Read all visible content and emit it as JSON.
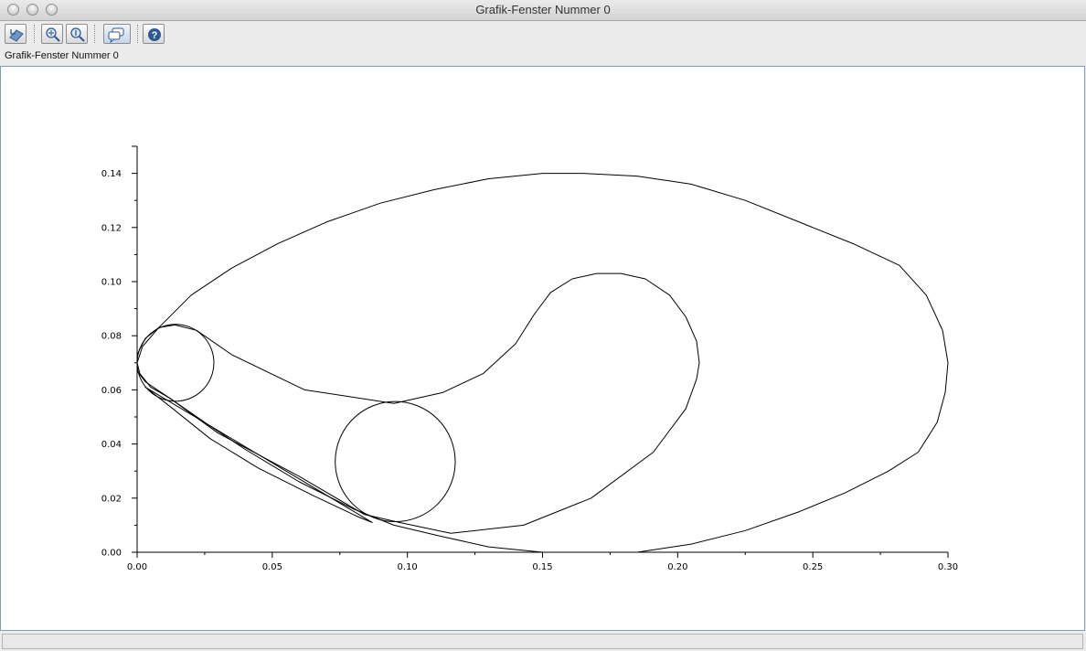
{
  "window": {
    "title": "Grafik-Fenster Nummer 0"
  },
  "figure": {
    "label": "Grafik-Fenster Nummer 0"
  },
  "toolbar": {
    "buttons": [
      {
        "icon": "rotate-icon"
      },
      {
        "icon": "zoom-icon"
      },
      {
        "icon": "zoom-reset-icon"
      },
      {
        "icon": "datatip-icon"
      },
      {
        "icon": "help-icon"
      }
    ]
  },
  "chart_data": {
    "type": "line",
    "title": "",
    "xlabel": "",
    "ylabel": "",
    "xlim": [
      0,
      0.3
    ],
    "ylim": [
      0,
      0.15
    ],
    "xticks": [
      "0.00",
      "0.05",
      "0.10",
      "0.15",
      "0.20",
      "0.25",
      "0.30"
    ],
    "yticks": [
      "0.00",
      "0.02",
      "0.04",
      "0.06",
      "0.08",
      "0.10",
      "0.12",
      "0.14"
    ],
    "grid": false,
    "line_color": "#000000",
    "series": [
      {
        "closed": true,
        "points": [
          [
            0.008,
            0.083
          ],
          [
            0.02,
            0.095
          ],
          [
            0.035,
            0.105
          ],
          [
            0.052,
            0.114
          ],
          [
            0.07,
            0.122
          ],
          [
            0.09,
            0.129
          ],
          [
            0.11,
            0.134
          ],
          [
            0.13,
            0.138
          ],
          [
            0.15,
            0.14
          ],
          [
            0.165,
            0.14
          ],
          [
            0.185,
            0.139
          ],
          [
            0.205,
            0.136
          ],
          [
            0.225,
            0.13
          ],
          [
            0.245,
            0.122
          ],
          [
            0.265,
            0.114
          ],
          [
            0.282,
            0.106
          ],
          [
            0.292,
            0.095
          ],
          [
            0.298,
            0.082
          ],
          [
            0.3,
            0.07
          ],
          [
            0.299,
            0.059
          ],
          [
            0.296,
            0.048
          ],
          [
            0.289,
            0.037
          ],
          [
            0.278,
            0.03
          ],
          [
            0.262,
            0.022
          ],
          [
            0.245,
            0.015
          ],
          [
            0.225,
            0.008
          ],
          [
            0.205,
            0.003
          ],
          [
            0.185,
            0.0
          ],
          [
            0.168,
            0.0
          ],
          [
            0.15,
            0.0
          ],
          [
            0.13,
            0.002
          ],
          [
            0.112,
            0.006
          ],
          [
            0.095,
            0.01
          ],
          [
            0.08,
            0.016
          ],
          [
            0.06,
            0.026
          ],
          [
            0.04,
            0.038
          ],
          [
            0.025,
            0.048
          ],
          [
            0.012,
            0.057
          ],
          [
            0.005,
            0.061
          ],
          [
            0.001,
            0.066
          ],
          [
            0.0,
            0.07
          ],
          [
            0.002,
            0.076
          ],
          [
            0.008,
            0.083
          ]
        ]
      },
      {
        "closed": true,
        "points": [
          [
            0.003,
            0.063
          ],
          [
            0.0,
            0.067
          ],
          [
            0.0,
            0.073
          ],
          [
            0.003,
            0.079
          ],
          [
            0.008,
            0.083
          ],
          [
            0.014,
            0.084
          ],
          [
            0.022,
            0.082
          ],
          [
            0.035,
            0.073
          ],
          [
            0.062,
            0.06
          ],
          [
            0.095,
            0.055
          ],
          [
            0.113,
            0.059
          ],
          [
            0.128,
            0.066
          ],
          [
            0.14,
            0.077
          ],
          [
            0.147,
            0.088
          ],
          [
            0.153,
            0.096
          ],
          [
            0.161,
            0.101
          ],
          [
            0.17,
            0.103
          ],
          [
            0.179,
            0.103
          ],
          [
            0.188,
            0.101
          ],
          [
            0.197,
            0.095
          ],
          [
            0.203,
            0.087
          ],
          [
            0.207,
            0.078
          ],
          [
            0.208,
            0.07
          ],
          [
            0.207,
            0.064
          ],
          [
            0.203,
            0.053
          ],
          [
            0.191,
            0.037
          ],
          [
            0.168,
            0.02
          ],
          [
            0.143,
            0.01
          ],
          [
            0.116,
            0.007
          ],
          [
            0.097,
            0.011
          ],
          [
            0.084,
            0.014
          ],
          [
            0.06,
            0.028
          ],
          [
            0.03,
            0.044
          ],
          [
            0.012,
            0.057
          ],
          [
            0.003,
            0.063
          ]
        ]
      },
      {
        "closed": true,
        "points": [
          [
            0.003,
            0.061
          ],
          [
            0.012,
            0.054
          ],
          [
            0.027,
            0.042
          ],
          [
            0.045,
            0.031
          ],
          [
            0.065,
            0.021
          ],
          [
            0.082,
            0.013
          ],
          [
            0.087,
            0.011
          ]
        ]
      }
    ],
    "circles": [
      {
        "cx": 0.0955,
        "cy": 0.0335,
        "r": 0.0222
      },
      {
        "cx": 0.0142,
        "cy": 0.07,
        "r": 0.0142
      }
    ]
  }
}
